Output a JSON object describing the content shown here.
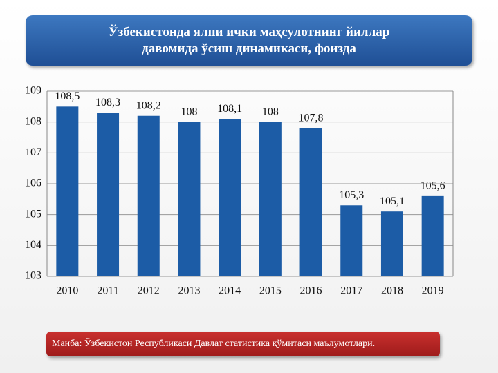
{
  "chart_data": {
    "type": "bar",
    "title": "Ўзбекистонда ялпи ички маҳсулотнинг йиллар давомида ўсиш динамикаси, фоизда",
    "source": "Манба: Ўзбекистон Республикаси Давлат статистика қўмитаси маълумотлари.",
    "categories": [
      "2010",
      "2011",
      "2012",
      "2013",
      "2014",
      "2015",
      "2016",
      "2017",
      "2018",
      "2019"
    ],
    "values": [
      108.5,
      108.3,
      108.2,
      108,
      108.1,
      108,
      107.8,
      105.3,
      105.1,
      105.6
    ],
    "value_labels": [
      "108,5",
      "108,3",
      "108,2",
      "108",
      "108,1",
      "108",
      "107,8",
      "105,3",
      "105,1",
      "105,6"
    ],
    "color": "#1c5ca6",
    "ylim": [
      103,
      109
    ],
    "yticks": [
      103,
      104,
      105,
      106,
      107,
      108,
      109
    ],
    "grid": true
  }
}
